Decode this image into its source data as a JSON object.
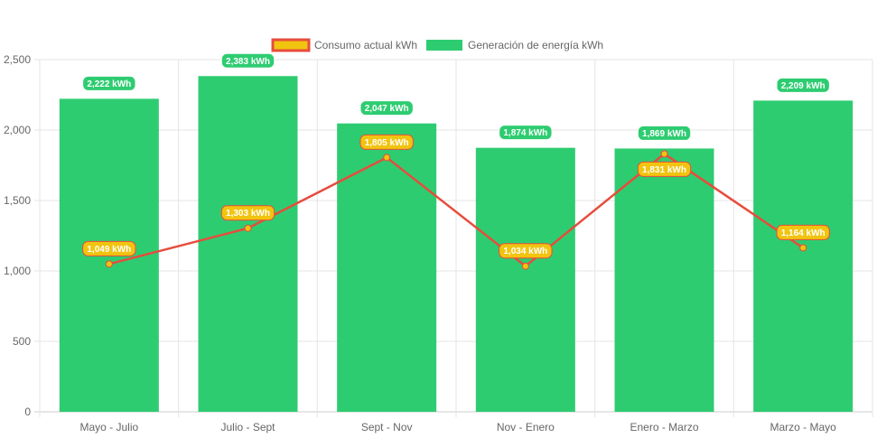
{
  "chart_data": {
    "type": "bar",
    "title": "",
    "xlabel": "",
    "ylabel": "",
    "ylim": [
      0,
      2500
    ],
    "yticks": [
      0,
      500,
      1000,
      1500,
      2000,
      2500
    ],
    "ytick_labels": [
      "0",
      "500",
      "1,000",
      "1,500",
      "2,000",
      "2,500"
    ],
    "categories": [
      "Mayo - Julio",
      "Julio - Sept",
      "Sept - Nov",
      "Nov - Enero",
      "Enero - Marzo",
      "Marzo - Mayo"
    ],
    "grid": true,
    "legend_placement": "top-center",
    "unit_suffix": " kWh",
    "series": [
      {
        "name": "Consumo actual kWh",
        "type": "line",
        "color": "#e74c3c",
        "fill": "#f1c40f",
        "values": [
          1049,
          1303,
          1805,
          1034,
          1831,
          1164
        ],
        "labels": [
          "1,049 kWh",
          "1,303 kWh",
          "1,805 kWh",
          "1,034 kWh",
          "1,831 kWh",
          "1,164 kWh"
        ]
      },
      {
        "name": "Generación de energía kWh",
        "type": "bar",
        "color": "#2ecc71",
        "values": [
          2222,
          2383,
          2047,
          1874,
          1869,
          2209
        ],
        "labels": [
          "2,222 kWh",
          "2,383 kWh",
          "2,047 kWh",
          "1,874 kWh",
          "1,869 kWh",
          "2,209 kWh"
        ]
      }
    ]
  }
}
